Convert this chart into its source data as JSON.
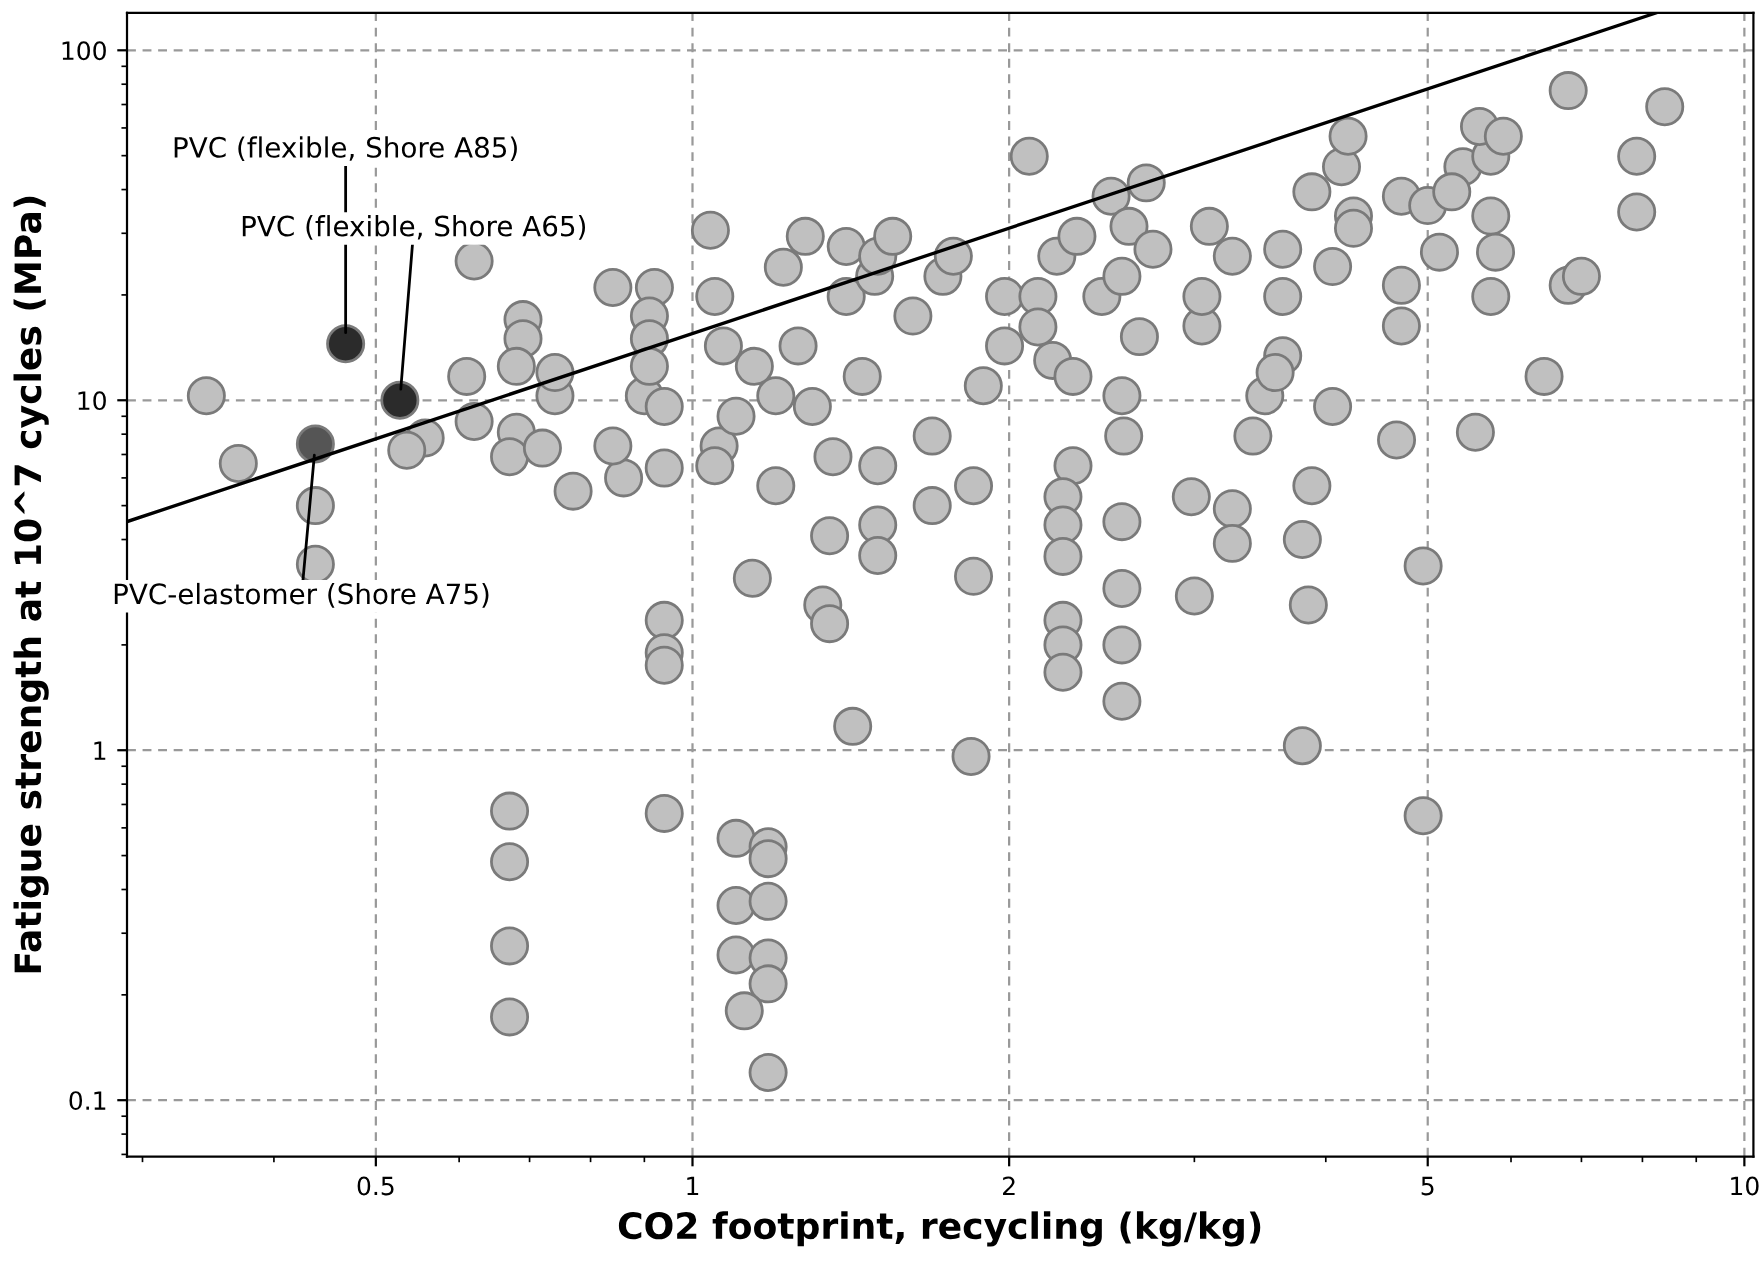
{
  "chart_data": {
    "type": "scatter",
    "xlabel": "CO2 footprint, recycling (kg/kg)",
    "ylabel": "Fatigue strength at 10^7 cycles (MPa)",
    "log": "xy",
    "grid": true,
    "marker": "circle",
    "xlim": [
      0.29,
      10.2
    ],
    "xticks": [
      0.5,
      1,
      2,
      5,
      10
    ],
    "ylim": [
      0.069,
      128
    ],
    "yticks": [
      0.1,
      1,
      10,
      100
    ],
    "annotations": [
      {
        "text": "PVC (flexible, Shore A85)",
        "x": 0.468,
        "y": 14.5
      },
      {
        "text": "PVC (flexible, Shore A65)",
        "x": 0.527,
        "y": 10
      },
      {
        "text": "PVC-elastomer (Shore A75)",
        "x": 0.438,
        "y": 7.5
      }
    ],
    "series": [
      {
        "color": "#c0c0c0",
        "x": [
          0.345,
          0.37,
          0.438,
          0.438,
          0.62,
          0.557,
          0.535,
          0.62,
          0.61,
          0.68,
          0.67,
          0.72,
          0.77,
          0.69,
          0.69,
          0.68,
          0.74,
          0.74,
          0.86,
          0.84,
          0.94,
          0.9,
          0.94,
          0.84,
          0.92,
          0.91,
          0.91,
          0.91,
          1.04,
          1.05,
          1.07,
          1.06,
          1.05,
          1.1,
          1.145,
          1.2,
          1.2,
          1.22,
          1.28,
          1.26,
          1.3,
          1.36,
          1.4,
          1.4,
          1.49,
          1.45,
          1.35,
          1.5,
          1.5,
          1.5,
          1.5,
          1.55,
          1.69,
          1.69,
          1.62,
          1.73,
          1.77,
          1.89,
          1.98,
          1.98,
          1.85,
          1.85,
          1.33,
          1.35,
          1.42,
          1.14,
          0.94,
          0.94,
          0.94,
          0.94,
          0.67,
          0.67,
          0.67,
          0.67,
          1.1,
          1.18,
          1.18,
          1.1,
          1.18,
          1.1,
          1.18,
          1.18,
          1.12,
          1.18,
          1.84,
          2.09,
          2.22,
          2.32,
          2.13,
          2.13,
          2.2,
          2.3,
          2.45,
          2.5,
          2.7,
          2.6,
          2.56,
          2.74,
          2.66,
          2.56,
          2.57,
          2.3,
          2.25,
          2.25,
          2.25,
          2.25,
          2.25,
          2.25,
          2.56,
          2.56,
          2.56,
          2.56,
          2.98,
          3.0,
          3.05,
          3.05,
          3.1,
          3.26,
          3.26,
          3.26,
          3.64,
          3.64,
          3.64,
          3.5,
          3.41,
          3.58,
          3.88,
          3.88,
          3.8,
          3.85,
          3.8,
          4.06,
          4.06,
          4.25,
          4.14,
          4.2,
          4.25,
          4.72,
          4.72,
          4.72,
          4.67,
          4.95,
          4.95,
          5.13,
          5.0,
          5.4,
          5.27,
          5.74,
          5.74,
          5.8,
          5.74,
          5.55,
          5.6,
          5.9,
          6.45,
          6.8,
          7.0,
          6.8,
          7.9,
          7.9,
          8.4
        ],
        "values": [
          10.3,
          6.6,
          5.0,
          3.4,
          25,
          7.8,
          7.2,
          8.7,
          11.7,
          8.1,
          6.9,
          7.3,
          5.5,
          17,
          15,
          12.5,
          10.3,
          12,
          6,
          7.4,
          6.4,
          10.3,
          9.6,
          21,
          21,
          17.4,
          15,
          12.5,
          30.6,
          19.8,
          14.3,
          7.4,
          6.5,
          9,
          12.5,
          10.3,
          5.7,
          24,
          29.4,
          14.3,
          9.6,
          6.9,
          19.8,
          27.5,
          22.6,
          11.7,
          4.1,
          6.5,
          4.4,
          3.6,
          25.8,
          29.4,
          7.9,
          5,
          17.4,
          22.6,
          25.8,
          11,
          19.8,
          14.3,
          5.7,
          3.14,
          2.6,
          2.3,
          1.17,
          3.1,
          2.35,
          1.9,
          1.75,
          0.66,
          0.67,
          0.48,
          0.276,
          0.173,
          0.56,
          0.53,
          0.49,
          0.36,
          0.37,
          0.26,
          0.255,
          0.215,
          0.18,
          0.12,
          0.96,
          49.8,
          25.8,
          29.4,
          19.8,
          16.2,
          13,
          11.7,
          19.8,
          38.3,
          41.8,
          31.4,
          22.6,
          27,
          15.2,
          10.3,
          7.9,
          6.5,
          5.3,
          4.4,
          3.58,
          2.35,
          2.0,
          1.67,
          4.5,
          2.9,
          2.0,
          1.38,
          5.3,
          2.76,
          16.3,
          19.8,
          31.4,
          25.8,
          4.9,
          3.9,
          27,
          19.8,
          13.4,
          10.3,
          7.9,
          12,
          39.4,
          5.7,
          4,
          2.6,
          1.03,
          9.6,
          24.1,
          33.6,
          46.5,
          56.8,
          31,
          21.3,
          16.3,
          38.3,
          7.7,
          3.36,
          0.65,
          26.5,
          36,
          46.5,
          39.4,
          33.6,
          19.8,
          26.5,
          49.8,
          8.1,
          60.6,
          56.8,
          11.7,
          21.3,
          22.6,
          76.7,
          49.8,
          34.5,
          69
        ]
      },
      {
        "colors": [
          "#2b2b2b",
          "#2b2b2b",
          "#555555"
        ],
        "x": [
          0.468,
          0.527,
          0.438
        ],
        "values": [
          14.5,
          10,
          7.5
        ]
      },
      {
        "type": "line",
        "color": "#000000",
        "line_style": "solid",
        "marker": "none",
        "x": [
          0.29,
          8.25
        ],
        "values": [
          4.5,
          128
        ]
      }
    ]
  }
}
